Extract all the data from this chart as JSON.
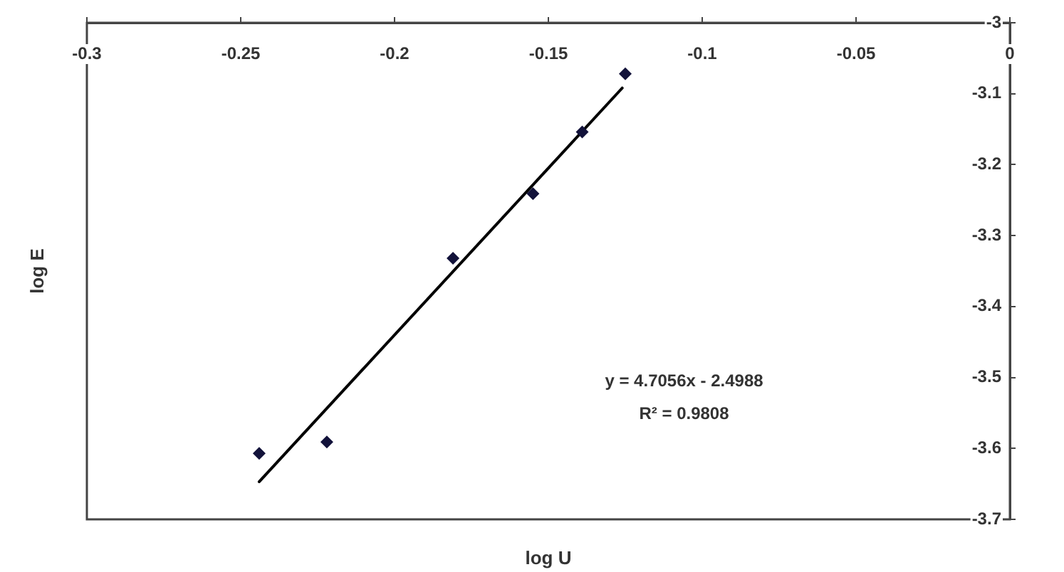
{
  "chart_data": {
    "type": "scatter",
    "xlabel": "log U",
    "ylabel": "log E",
    "xlim": [
      -0.3,
      0
    ],
    "xticks": [
      -0.3,
      -0.25,
      -0.2,
      -0.15,
      -0.1,
      -0.05,
      0
    ],
    "ylim": [
      -3.7,
      -3
    ],
    "yticks": [
      -3.7,
      -3.6,
      -3.5,
      -3.4,
      -3.3,
      -3.2,
      -3.1,
      -3
    ],
    "marker": "diamond",
    "series": [
      {
        "color": "#12123a",
        "x": [
          -0.244,
          -0.222,
          -0.181,
          -0.155,
          -0.139,
          -0.125
        ],
        "values": [
          -3.607,
          -3.591,
          -3.332,
          -3.241,
          -3.154,
          -3.072
        ]
      },
      {
        "type": "line",
        "color": "#000000",
        "marker": "none",
        "line_style": "solid",
        "x": [
          -0.244,
          -0.126
        ],
        "values": [
          -3.647,
          -3.092
        ]
      }
    ],
    "annotations": [
      "y = 4.7056x - 2.4988",
      "R² = 0.9808"
    ]
  }
}
